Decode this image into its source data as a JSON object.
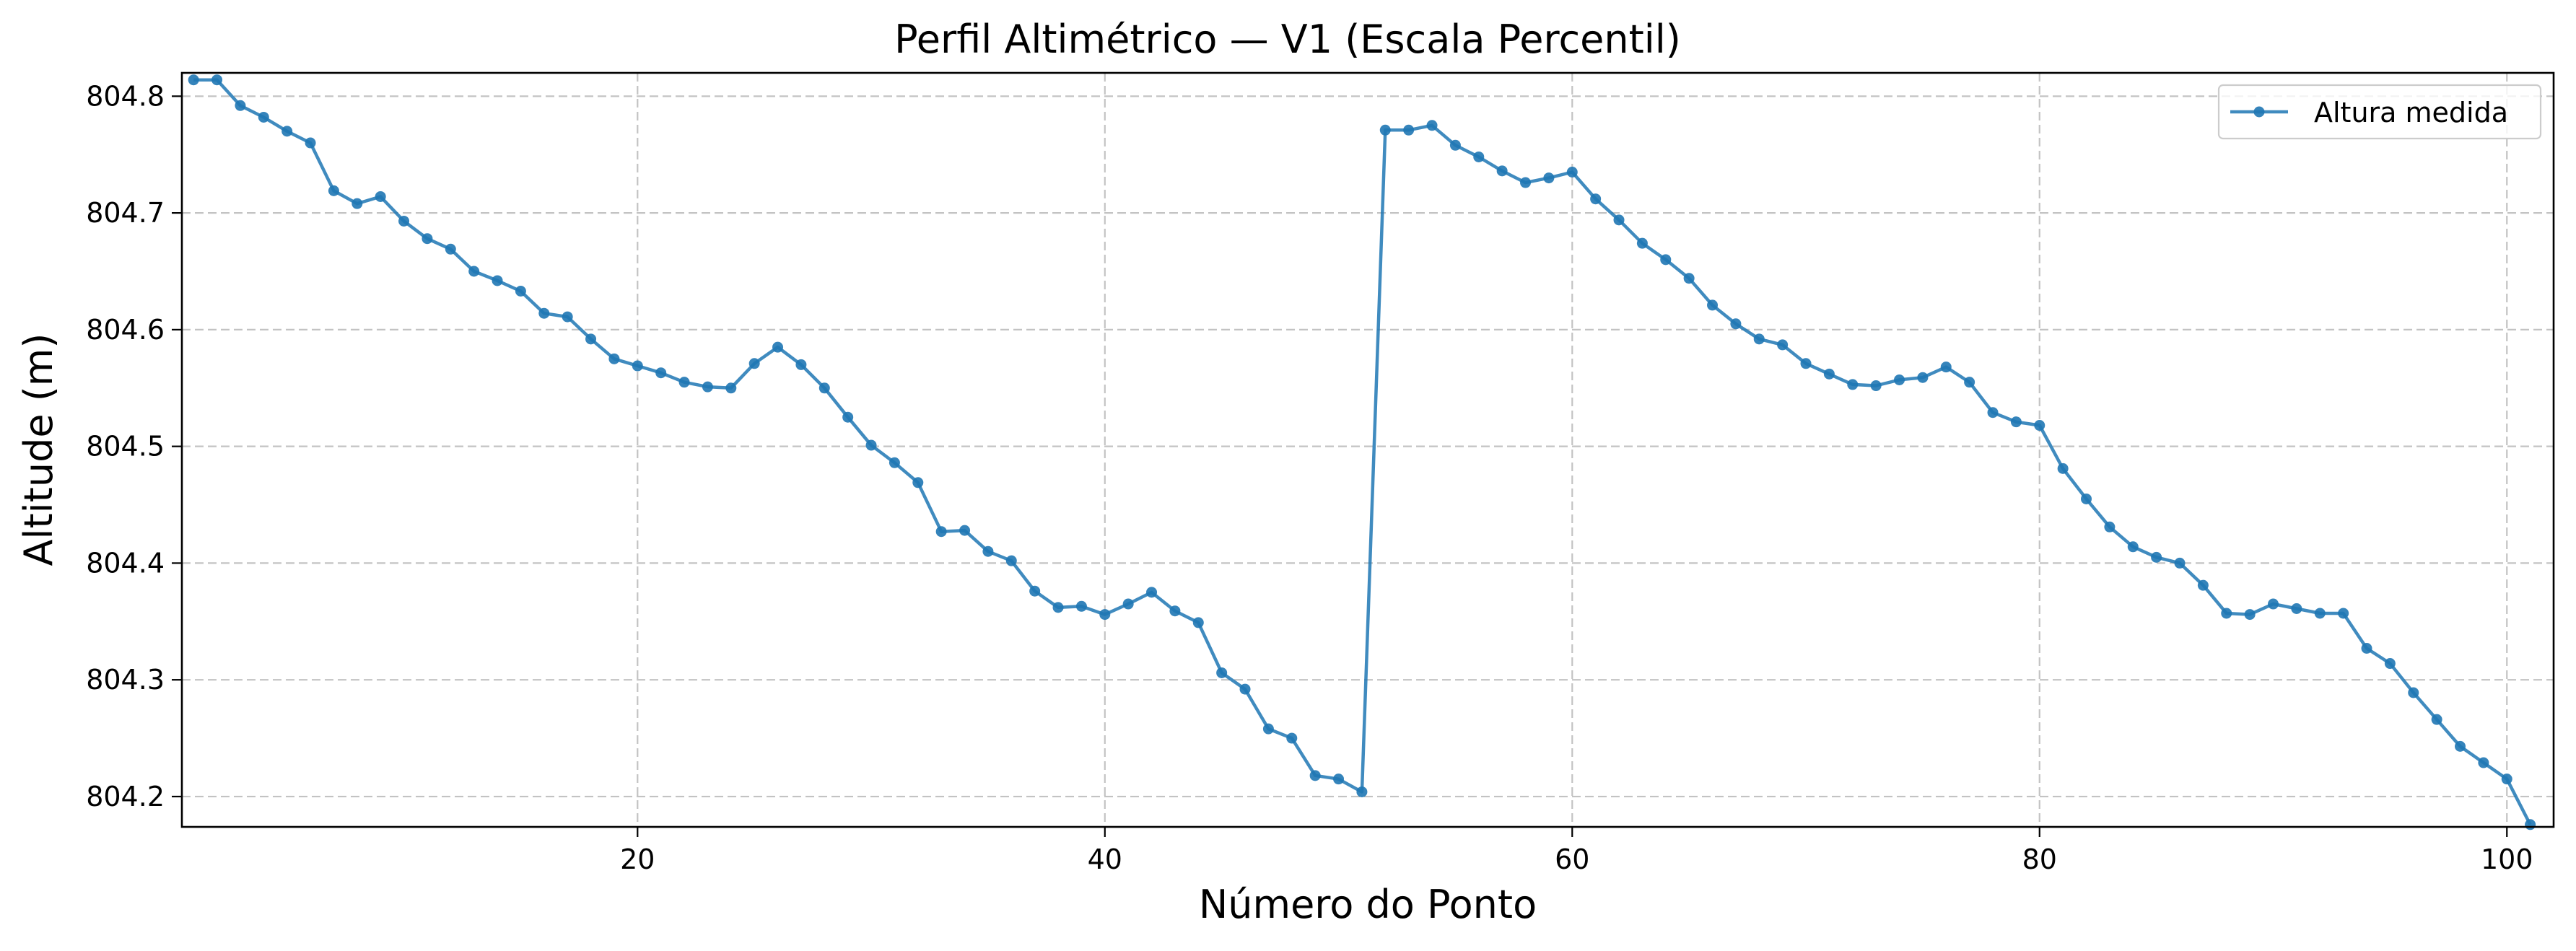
{
  "chart_data": {
    "type": "line",
    "title": "Perfil Altimétrico — V1 (Escala Percentil)",
    "xlabel": "Número do Ponto",
    "ylabel": "Altitude (m)",
    "xlim": [
      0.5,
      102
    ],
    "ylim": [
      804.174,
      804.82
    ],
    "xticks": [
      20,
      40,
      60,
      80,
      100
    ],
    "xtick_labels": [
      "20",
      "40",
      "60",
      "80",
      "100"
    ],
    "yticks": [
      804.2,
      804.3,
      804.4,
      804.5,
      804.6,
      804.7,
      804.8
    ],
    "ytick_labels": [
      "804.2",
      "804.3",
      "804.4",
      "804.5",
      "804.6",
      "804.7",
      "804.8"
    ],
    "grid": true,
    "legend": {
      "position": "top-right",
      "entries": [
        "Altura medida"
      ]
    },
    "color": "#1f77b4",
    "series": [
      {
        "name": "Altura medida",
        "x": [
          1,
          2,
          3,
          4,
          5,
          6,
          7,
          8,
          9,
          10,
          11,
          12,
          13,
          14,
          15,
          16,
          17,
          18,
          19,
          20,
          21,
          22,
          23,
          24,
          25,
          26,
          27,
          28,
          29,
          30,
          31,
          32,
          33,
          34,
          35,
          36,
          37,
          38,
          39,
          40,
          41,
          42,
          43,
          44,
          45,
          46,
          47,
          48,
          49,
          50,
          51,
          52,
          53,
          54,
          55,
          56,
          57,
          58,
          59,
          60,
          61,
          62,
          63,
          64,
          65,
          66,
          67,
          68,
          69,
          70,
          71,
          72,
          73,
          74,
          75,
          76,
          77,
          78,
          79,
          80,
          81,
          82,
          83,
          84,
          85,
          86,
          87,
          88,
          89,
          90,
          91,
          92,
          93,
          94,
          95,
          96,
          97,
          98,
          99,
          100,
          101
        ],
        "y": [
          804.814,
          804.814,
          804.792,
          804.782,
          804.77,
          804.76,
          804.719,
          804.708,
          804.714,
          804.693,
          804.678,
          804.669,
          804.65,
          804.642,
          804.633,
          804.614,
          804.611,
          804.592,
          804.575,
          804.569,
          804.563,
          804.555,
          804.551,
          804.55,
          804.571,
          804.585,
          804.57,
          804.55,
          804.525,
          804.501,
          804.486,
          804.469,
          804.427,
          804.428,
          804.41,
          804.402,
          804.376,
          804.362,
          804.363,
          804.356,
          804.365,
          804.375,
          804.359,
          804.349,
          804.306,
          804.292,
          804.258,
          804.25,
          804.218,
          804.215,
          804.204,
          804.771,
          804.771,
          804.775,
          804.758,
          804.748,
          804.736,
          804.726,
          804.73,
          804.735,
          804.712,
          804.694,
          804.674,
          804.66,
          804.644,
          804.621,
          804.605,
          804.592,
          804.587,
          804.571,
          804.562,
          804.553,
          804.552,
          804.557,
          804.559,
          804.568,
          804.555,
          804.529,
          804.521,
          804.518,
          804.481,
          804.455,
          804.431,
          804.414,
          804.405,
          804.4,
          804.381,
          804.357,
          804.356,
          804.365,
          804.361,
          804.357,
          804.357,
          804.327,
          804.314,
          804.289,
          804.266,
          804.243,
          804.229,
          804.215,
          804.176
        ]
      }
    ]
  }
}
